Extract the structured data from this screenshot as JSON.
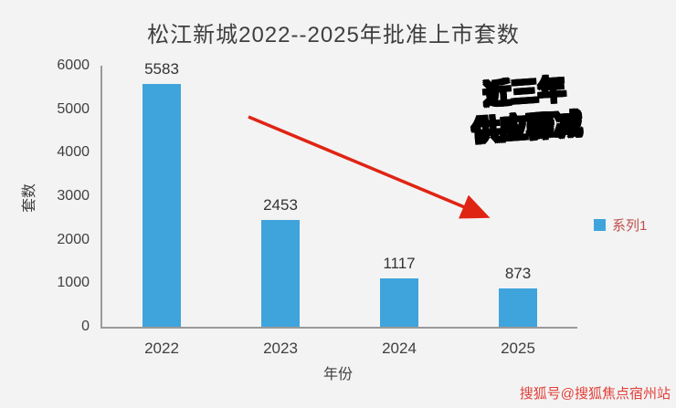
{
  "chart_data": {
    "type": "bar",
    "title": "松江新城2022--2025年批准上市套数",
    "categories": [
      "2022",
      "2023",
      "2024",
      "2025"
    ],
    "values": [
      5583,
      2453,
      1117,
      873
    ],
    "xlabel": "年份",
    "ylabel": "套数",
    "ylim": [
      0,
      6000
    ],
    "yticks": [
      0,
      1000,
      2000,
      3000,
      4000,
      5000,
      6000
    ],
    "grid": false,
    "bar_color": "#3fa4dc",
    "legend": {
      "label": "系列1",
      "position": "right",
      "swatch_color": "#3fa4dc",
      "text_color": "#c0504d"
    },
    "annotation": {
      "lines": [
        "近三年",
        "供应骤减"
      ],
      "arrow_color": "#e02414"
    }
  },
  "watermark": {
    "text": "搜狐号@搜狐焦点宿州站",
    "color": "#e2403a"
  }
}
